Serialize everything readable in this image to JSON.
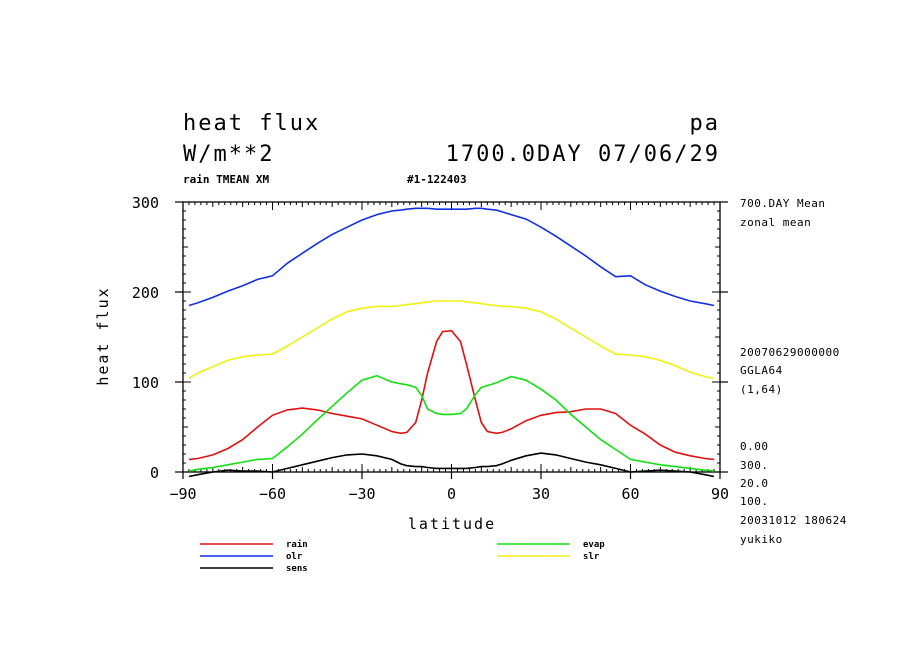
{
  "header": {
    "title_left": "heat flux",
    "title_right": "pa",
    "units": "W/m**2",
    "date_label": "1700.0DAY 07/06/29",
    "subtitle_left": "rain TMEAN XM",
    "subtitle_mid": "#1-122403"
  },
  "info_right": {
    "line1": "700.DAY Mean",
    "line2": "zonal mean",
    "line3": "20070629000000",
    "line4": "GGLA64",
    "line5": "(1,64)",
    "line6": "0.00",
    "line7": "300.",
    "line8": "20.0",
    "line9": "100.",
    "line10": "20031012 180624",
    "line11": "yukiko"
  },
  "chart_data": {
    "type": "line",
    "title": "heat flux",
    "xlabel": "latitude",
    "ylabel": "heat flux",
    "xlim": [
      -90,
      90
    ],
    "ylim": [
      0,
      300
    ],
    "x_ticks": [
      "-90",
      "-60",
      "-30",
      "0",
      "30",
      "60",
      "90"
    ],
    "x_tick_values": [
      -90,
      -60,
      -30,
      0,
      30,
      60,
      90
    ],
    "y_ticks": [
      "0",
      "100",
      "200",
      "300"
    ],
    "y_tick_values": [
      0,
      100,
      200,
      300
    ],
    "x": [
      -88,
      -85,
      -80,
      -75,
      -70,
      -65,
      -60,
      -55,
      -50,
      -45,
      -40,
      -35,
      -30,
      -25,
      -20,
      -17,
      -15,
      -12,
      -10,
      -8,
      -5,
      -3,
      0,
      3,
      5,
      8,
      10,
      12,
      15,
      17,
      20,
      25,
      30,
      35,
      40,
      45,
      50,
      55,
      60,
      65,
      70,
      75,
      80,
      85,
      88
    ],
    "series": [
      {
        "name": "rain",
        "color": "#e01010",
        "values": [
          14,
          15,
          19,
          26,
          36,
          50,
          63,
          69,
          71,
          69,
          65,
          62,
          59,
          52,
          45,
          43,
          44,
          55,
          80,
          110,
          145,
          156,
          157,
          145,
          120,
          80,
          55,
          45,
          43,
          44,
          48,
          57,
          63,
          66,
          67,
          70,
          70,
          65,
          52,
          42,
          30,
          22,
          18,
          15,
          14
        ]
      },
      {
        "name": "evap",
        "color": "#10e010",
        "values": [
          1,
          3,
          5,
          8,
          11,
          14,
          15,
          28,
          42,
          58,
          73,
          88,
          102,
          107,
          100,
          98,
          97,
          94,
          85,
          70,
          65,
          64,
          64,
          65,
          70,
          86,
          94,
          96,
          99,
          102,
          106,
          102,
          92,
          80,
          64,
          50,
          36,
          25,
          14,
          11,
          8,
          6,
          4,
          2,
          1
        ]
      },
      {
        "name": "olr",
        "color": "#1030e0",
        "values": [
          185,
          188,
          194,
          201,
          207,
          214,
          218,
          232,
          243,
          254,
          264,
          272,
          280,
          286,
          290,
          291,
          292,
          293,
          293,
          293,
          292,
          292,
          292,
          292,
          292,
          293,
          293,
          292,
          291,
          289,
          286,
          281,
          272,
          262,
          251,
          240,
          228,
          217,
          218,
          208,
          201,
          195,
          190,
          187,
          185
        ]
      },
      {
        "name": "slr",
        "color": "#f0f010",
        "values": [
          104,
          110,
          117,
          124,
          128,
          130,
          131,
          140,
          150,
          160,
          170,
          178,
          182,
          184,
          184,
          185,
          186,
          187,
          188,
          189,
          190,
          190,
          190,
          190,
          189,
          188,
          187,
          186,
          185,
          184,
          184,
          182,
          178,
          170,
          160,
          150,
          140,
          131,
          130,
          128,
          124,
          118,
          111,
          106,
          104
        ]
      },
      {
        "name": "sens",
        "color": "#000000",
        "values": [
          -5,
          -3,
          0,
          2,
          1,
          1,
          0,
          4,
          8,
          12,
          16,
          19,
          20,
          18,
          14,
          9,
          7,
          6,
          6,
          5,
          4,
          4,
          4,
          4,
          4,
          5,
          6,
          6,
          7,
          9,
          13,
          18,
          21,
          19,
          15,
          11,
          8,
          4,
          0,
          1,
          2,
          1,
          0,
          -3,
          -5
        ]
      }
    ],
    "legend": [
      "rain",
      "evap",
      "olr",
      "slr",
      "sens"
    ],
    "legend_position": "bottom"
  }
}
